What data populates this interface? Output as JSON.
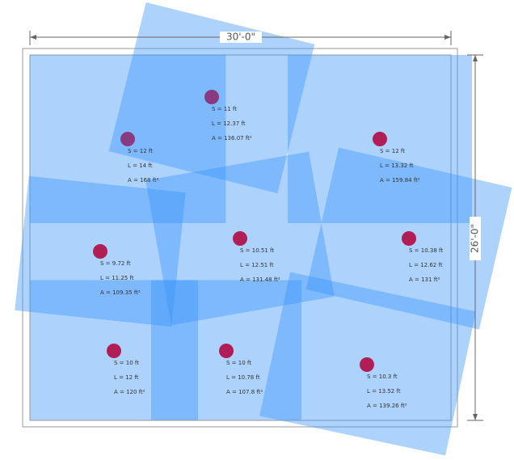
{
  "dimensions": {
    "width": "30'-0\"",
    "depth": "26'-0\""
  },
  "zones": [
    {
      "spacing": "S = 11 ft",
      "length": "L = 12.37 ft",
      "area": "A = 136.07 ft²"
    },
    {
      "spacing": "S = 12 ft",
      "length": "L = 14 ft",
      "area": "A = 168 ft²"
    },
    {
      "spacing": "S = 12 ft",
      "length": "L = 13.32 ft",
      "area": "A = 159.84 ft²"
    },
    {
      "spacing": "S = 9.72 ft",
      "length": "L = 11.25 ft",
      "area": "A = 109.35 ft²"
    },
    {
      "spacing": "S = 10.51 ft",
      "length": "L = 12.51 ft",
      "area": "A = 131.48 ft²"
    },
    {
      "spacing": "S = 10.38 ft",
      "length": "L = 12.62 ft",
      "area": "A = 131 ft²"
    },
    {
      "spacing": "S = 10 ft",
      "length": "L = 12 ft",
      "area": "A = 120 ft²"
    },
    {
      "spacing": "S = 10 ft",
      "length": "L = 10.78 ft",
      "area": "A = 107.8 ft²"
    },
    {
      "spacing": "S = 10.3 ft",
      "length": "L = 13.52 ft",
      "area": "A = 139.26 ft²"
    }
  ]
}
